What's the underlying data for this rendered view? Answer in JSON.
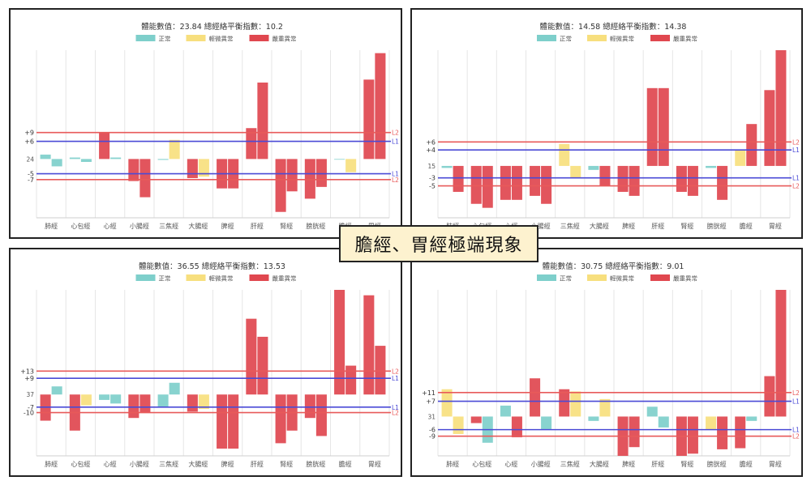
{
  "banner": {
    "text": "膽經、胃經極端現象"
  },
  "legend_labels": [
    "正常",
    "輕微異常",
    "嚴重異常"
  ],
  "colors": {
    "normal": "#7ecfcb",
    "mild": "#f7df7e",
    "severe": "#e0474f",
    "line_l2": "#e85a5a",
    "line_l1": "#4a4ad6"
  },
  "line_tags": {
    "l2": "L2",
    "l1": "L1"
  },
  "chart_data": [
    {
      "type": "bar",
      "title": "體能數值：23.84 總經絡平衡指數：10.2",
      "categories": [
        "肺經",
        "心包經",
        "心經",
        "小腸經",
        "三焦經",
        "大腸經",
        "脾經",
        "肝經",
        "腎經",
        "膀胱經",
        "膽經",
        "胃經"
      ],
      "baseline_label": "24",
      "ref_lines": {
        "upper2": 9,
        "upper1": 6,
        "lower1": -5,
        "lower2": -7
      },
      "ref_labels": {
        "upper2": "+9",
        "upper1": "+6",
        "lower1": "-5",
        "lower2": "-7"
      },
      "ylim": [
        -20,
        37
      ],
      "values": [
        [
          1.5,
          -2.5
        ],
        [
          0.5,
          -1
        ],
        [
          9,
          0.5
        ],
        [
          -7.5,
          -13
        ],
        [
          -0.3,
          6.5
        ],
        [
          -6.5,
          -6
        ],
        [
          -10,
          -10
        ],
        [
          10.5,
          26
        ],
        [
          -18,
          -11
        ],
        [
          -13.5,
          -9.5
        ],
        [
          0,
          -4.5
        ],
        [
          27,
          36
        ]
      ],
      "levels": [
        [
          "normal",
          "normal"
        ],
        [
          "normal",
          "normal"
        ],
        [
          "severe",
          "normal"
        ],
        [
          "severe",
          "severe"
        ],
        [
          "normal",
          "mild"
        ],
        [
          "severe",
          "mild"
        ],
        [
          "severe",
          "severe"
        ],
        [
          "severe",
          "severe"
        ],
        [
          "severe",
          "severe"
        ],
        [
          "severe",
          "severe"
        ],
        [
          "normal",
          "mild"
        ],
        [
          "severe",
          "severe"
        ]
      ]
    },
    {
      "type": "bar",
      "title": "體能數值：14.58 總經絡平衡指數：14.38",
      "categories": [
        "肺經",
        "心包經",
        "心經",
        "小腸經",
        "三焦經",
        "大腸經",
        "脾經",
        "肝經",
        "腎經",
        "膀胱經",
        "膽經",
        "胃經"
      ],
      "baseline_label": "15",
      "ref_lines": {
        "upper2": 6,
        "upper1": 4,
        "lower1": -3,
        "lower2": -5
      },
      "ref_labels": {
        "upper2": "+6",
        "upper1": "+4",
        "lower1": "-3",
        "lower2": "-5"
      },
      "ylim": [
        -13,
        29
      ],
      "values": [
        [
          -0.5,
          -6.5
        ],
        [
          -9.5,
          -10.5
        ],
        [
          -8.5,
          -8.5
        ],
        [
          -7.5,
          -9.5
        ],
        [
          5.5,
          -3
        ],
        [
          -1,
          -5
        ],
        [
          -6.5,
          -7.5
        ],
        [
          19.5,
          19.5
        ],
        [
          -6.5,
          -7.5
        ],
        [
          -0.5,
          -8.5
        ],
        [
          4,
          10.5
        ],
        [
          19,
          29
        ]
      ],
      "levels": [
        [
          "normal",
          "severe"
        ],
        [
          "severe",
          "severe"
        ],
        [
          "severe",
          "severe"
        ],
        [
          "severe",
          "severe"
        ],
        [
          "mild",
          "mild"
        ],
        [
          "normal",
          "severe"
        ],
        [
          "severe",
          "severe"
        ],
        [
          "severe",
          "severe"
        ],
        [
          "severe",
          "severe"
        ],
        [
          "normal",
          "severe"
        ],
        [
          "mild",
          "severe"
        ],
        [
          "severe",
          "severe"
        ]
      ]
    },
    {
      "type": "bar",
      "title": "體能數值：36.55 總經絡平衡指數：13.53",
      "categories": [
        "肺經",
        "心包經",
        "心經",
        "小腸經",
        "三焦經",
        "大腸經",
        "脾經",
        "肝經",
        "腎經",
        "膀胱經",
        "膽經",
        "胃經"
      ],
      "baseline_label": "37",
      "ref_lines": {
        "upper2": 13,
        "upper1": 9,
        "lower1": -7,
        "lower2": -10
      },
      "ref_labels": {
        "upper2": "+13",
        "upper1": "+9",
        "lower1": "-7",
        "lower2": "-10"
      },
      "ylim": [
        -34,
        58
      ],
      "values": [
        [
          -14.5,
          4.5
        ],
        [
          -20,
          -6
        ],
        [
          -3,
          -5
        ],
        [
          -13,
          -10
        ],
        [
          -7,
          6.5
        ],
        [
          -9.5,
          -8
        ],
        [
          -30,
          -30
        ],
        [
          42,
          32
        ],
        [
          -27,
          -20
        ],
        [
          -13,
          -23
        ],
        [
          58,
          16
        ],
        [
          55,
          27
        ]
      ],
      "levels": [
        [
          "severe",
          "normal"
        ],
        [
          "severe",
          "mild"
        ],
        [
          "normal",
          "normal"
        ],
        [
          "severe",
          "severe"
        ],
        [
          "normal",
          "normal"
        ],
        [
          "severe",
          "mild"
        ],
        [
          "severe",
          "severe"
        ],
        [
          "severe",
          "severe"
        ],
        [
          "severe",
          "severe"
        ],
        [
          "severe",
          "severe"
        ],
        [
          "severe",
          "severe"
        ],
        [
          "severe",
          "severe"
        ]
      ]
    },
    {
      "type": "bar",
      "title": "體能數值：30.75 總經絡平衡指數：9.01",
      "categories": [
        "肺經",
        "心包經",
        "心經",
        "小腸經",
        "三焦經",
        "大腸經",
        "脾經",
        "肝經",
        "腎經",
        "膀胱經",
        "膽經",
        "胃經"
      ],
      "baseline_label": "31",
      "ref_lines": {
        "upper2": 11,
        "upper1": 7,
        "lower1": -6,
        "lower2": -9
      },
      "ref_labels": {
        "upper2": "+11",
        "upper1": "+7",
        "lower1": "-6",
        "lower2": "-9"
      },
      "ylim": [
        -18,
        58
      ],
      "values": [
        [
          12.5,
          -8
        ],
        [
          -3,
          -12
        ],
        [
          5,
          -9.5
        ],
        [
          17.5,
          -6
        ],
        [
          12.5,
          11.5
        ],
        [
          -2,
          8
        ],
        [
          -18,
          -14
        ],
        [
          4.5,
          -5
        ],
        [
          -18,
          -17
        ],
        [
          -6,
          -15
        ],
        [
          -14.5,
          -2
        ],
        [
          18.5,
          58
        ]
      ],
      "levels": [
        [
          "mild",
          "mild"
        ],
        [
          "severe",
          "normal"
        ],
        [
          "normal",
          "severe"
        ],
        [
          "severe",
          "normal"
        ],
        [
          "severe",
          "mild"
        ],
        [
          "normal",
          "mild"
        ],
        [
          "severe",
          "severe"
        ],
        [
          "normal",
          "normal"
        ],
        [
          "severe",
          "severe"
        ],
        [
          "mild",
          "severe"
        ],
        [
          "severe",
          "normal"
        ],
        [
          "severe",
          "severe"
        ]
      ]
    }
  ]
}
